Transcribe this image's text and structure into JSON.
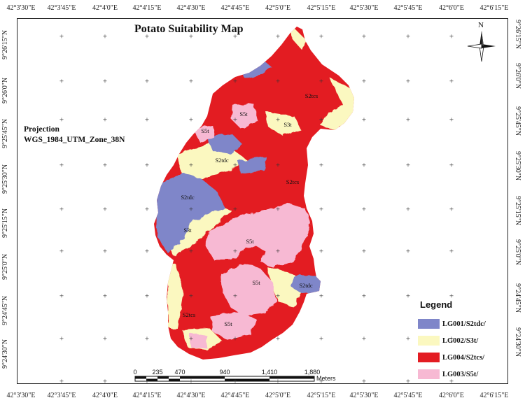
{
  "title": "Potato Suitability Map",
  "projection": {
    "line1": "Projection",
    "line2": "WGS_1984_UTM_Zone_38N"
  },
  "north_label": "N",
  "longitude_ticks": [
    "42°3'30\"E",
    "42°3'45\"E",
    "42°4'0\"E",
    "42°4'15\"E",
    "42°4'30\"E",
    "42°4'45\"E",
    "42°5'0\"E",
    "42°5'15\"E",
    "42°5'30\"E",
    "42°5'45\"E",
    "42°6'0\"E",
    "42°6'15\"E"
  ],
  "latitude_ticks": [
    "9°26'15\"N",
    "9°26'0\"N",
    "9°25'45\"N",
    "9°25'30\"N",
    "9°25'15\"N",
    "9°25'0\"N",
    "9°24'45\"N",
    "9°24'30\"N"
  ],
  "legend": {
    "title": "Legend",
    "items": [
      {
        "label": "LG001/S2tdc/",
        "color": "#7f86c9"
      },
      {
        "label": "LG002/S3t/",
        "color": "#fbf8c0"
      },
      {
        "label": "LG004/S2tcs/",
        "color": "#e31c22"
      },
      {
        "label": "LG003/S5t/",
        "color": "#f7b9d3"
      }
    ]
  },
  "zone_labels": {
    "s2tcs_a": "S2tcs",
    "s5t_a": "S5t",
    "s3t_a": "S3t",
    "s5t_b": "S5t",
    "s2tdc_a": "S2tdc",
    "s2tcs_b": "S2tcs",
    "s2tdc_b": "S2tdc",
    "s3t_b": "S3t",
    "s5t_c": "S5t",
    "s5t_d": "S5t",
    "s2tdc_c": "S2tdc",
    "s2tcs_c": "S2tcs",
    "s5t_e": "S5t"
  },
  "scale": {
    "labels": [
      "0",
      "235",
      "470",
      "940",
      "1,410",
      "1,880"
    ],
    "units": "Meters"
  }
}
